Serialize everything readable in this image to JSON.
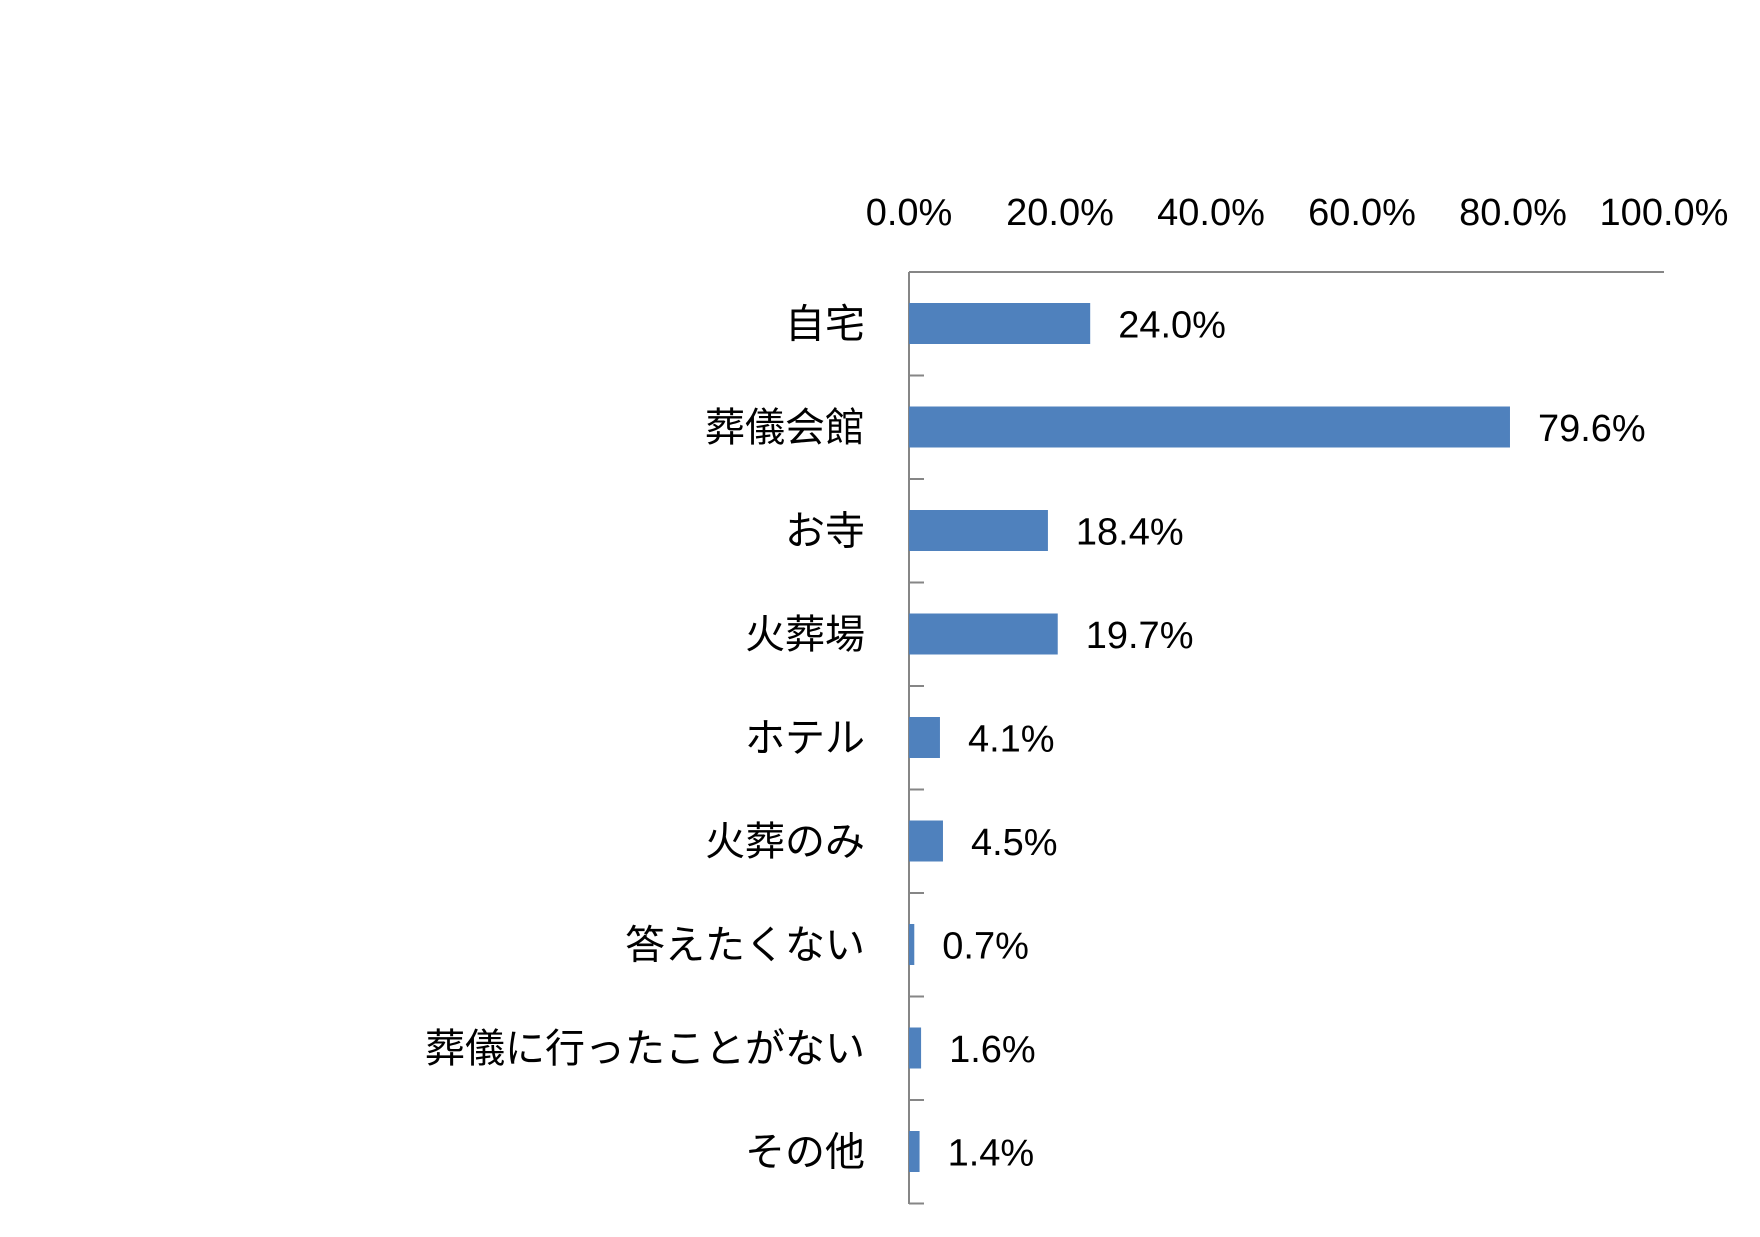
{
  "chart_data": {
    "type": "bar",
    "orientation": "horizontal",
    "categories": [
      "自宅",
      "葬儀会館",
      "お寺",
      "火葬場",
      "ホテル",
      "火葬のみ",
      "答えたくない",
      "葬儀に行ったことがない",
      "その他"
    ],
    "values": [
      24.0,
      79.6,
      18.4,
      19.7,
      4.1,
      4.5,
      0.7,
      1.6,
      1.4
    ],
    "value_labels": [
      "24.0%",
      "79.6%",
      "18.4%",
      "19.7%",
      "4.1%",
      "4.5%",
      "0.7%",
      "1.6%",
      "1.4%"
    ],
    "x_ticks": [
      0,
      20,
      40,
      60,
      80,
      100
    ],
    "x_tick_labels": [
      "0.0%",
      "20.0%",
      "40.0%",
      "60.0%",
      "80.0%",
      "100.0%"
    ],
    "xlim": [
      0,
      100
    ],
    "x_axis_position": "top",
    "grid": false,
    "legend": "none",
    "title": "",
    "xlabel": "",
    "ylabel": "",
    "bar_color": "#4F81BD",
    "axis_color": "#868686"
  }
}
